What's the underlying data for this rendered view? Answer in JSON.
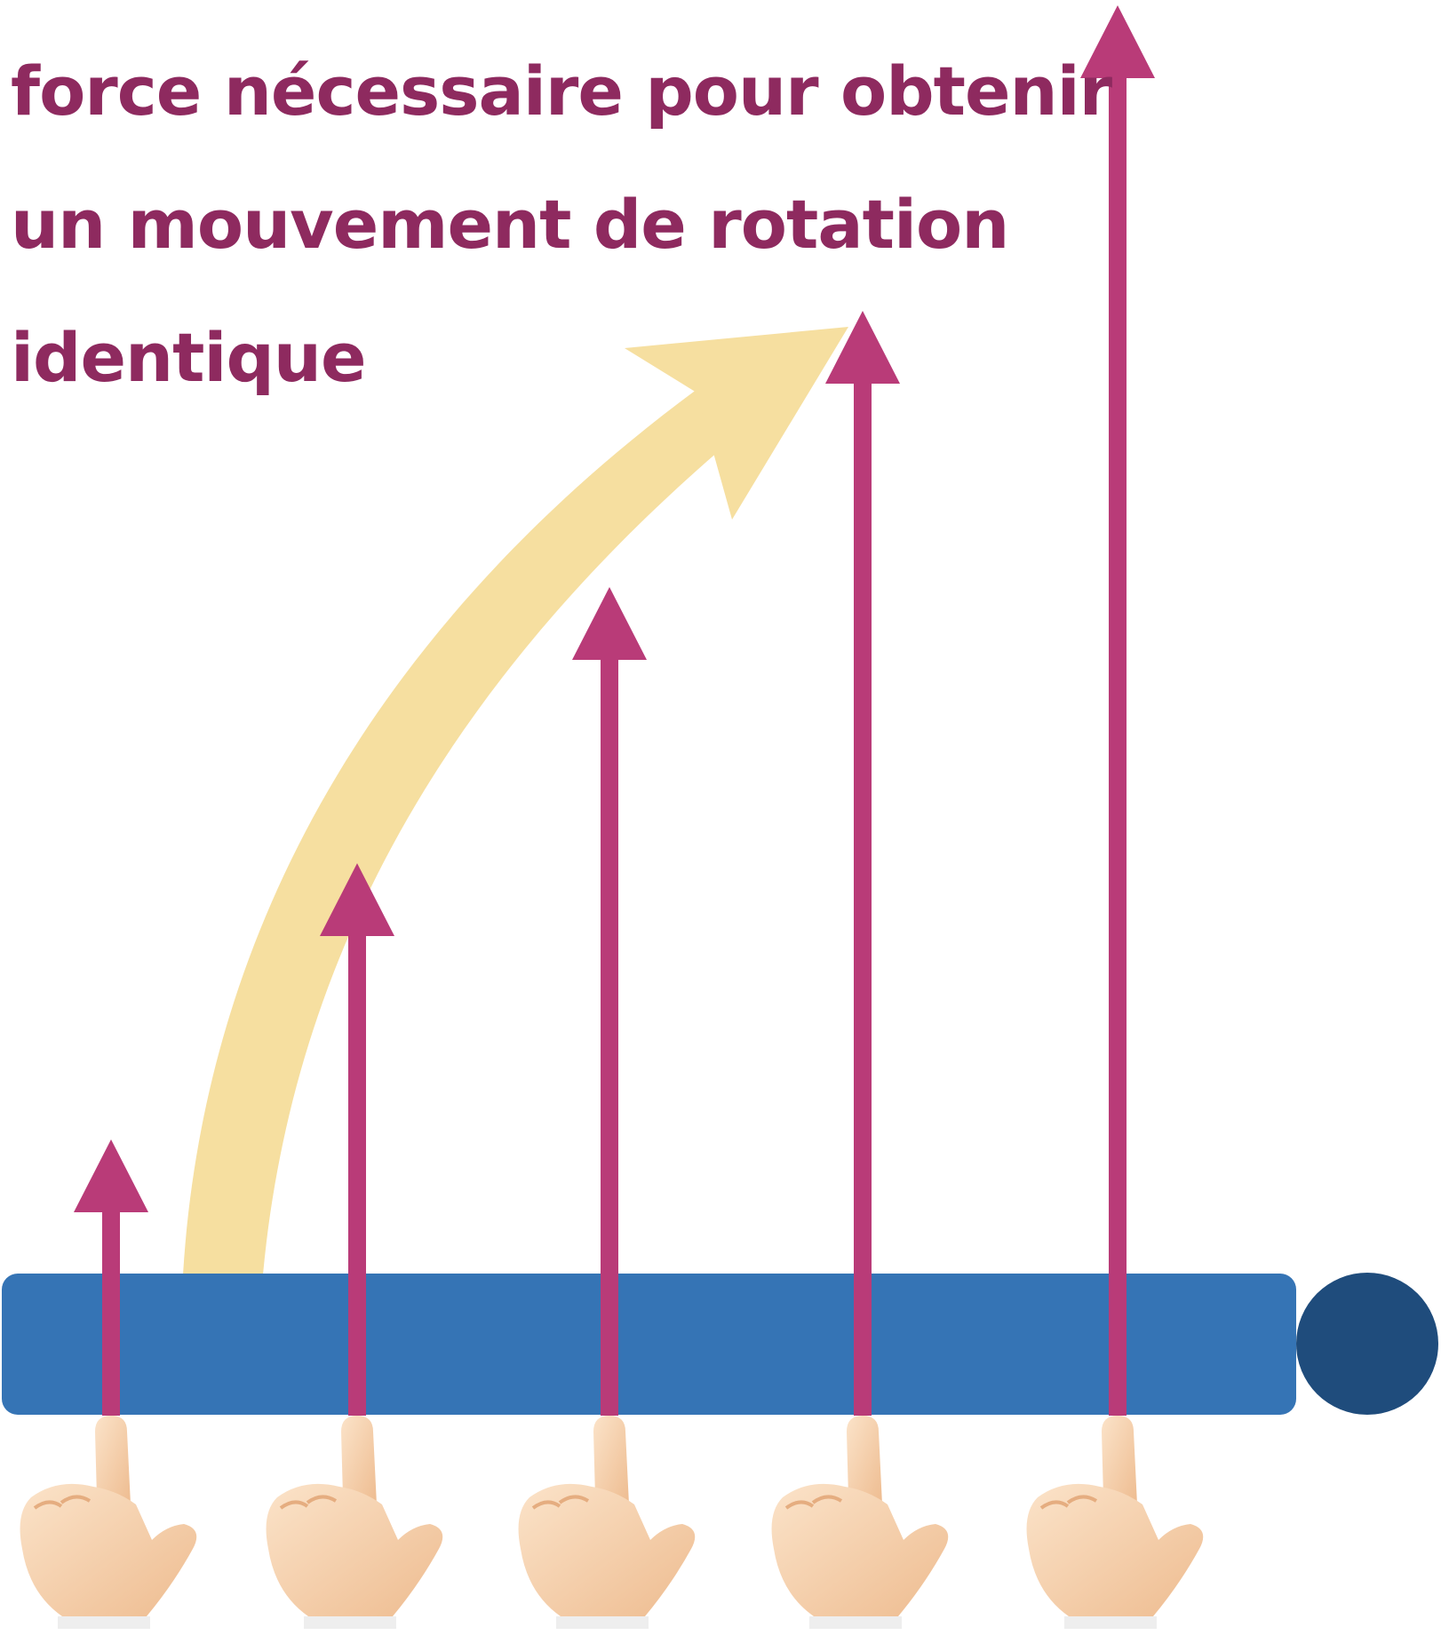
{
  "caption": {
    "lines": [
      "force nécessaire pour obtenir",
      "un mouvement de rotation",
      "identique"
    ]
  },
  "colors": {
    "caption_text": "#8e2a5f",
    "force_arrow": "#b93b78",
    "rotation_arrow": "#f6dfa0",
    "lever_bar": "#3574b5",
    "pivot": "#1f4c7c",
    "finger_skin": "#f4c9a0",
    "finger_skin_light": "#fbe3c9",
    "cuff": "#eeeeee"
  },
  "icons": {
    "pointing_hand": "pointing-hand-icon",
    "rotation_arrow": "curved-arrow-icon",
    "pivot": "pivot-circle-icon"
  },
  "forces": [
    {
      "id": "force-1",
      "relative_magnitude": 1
    },
    {
      "id": "force-2",
      "relative_magnitude": 2
    },
    {
      "id": "force-3",
      "relative_magnitude": 3
    },
    {
      "id": "force-4",
      "relative_magnitude": 4
    },
    {
      "id": "force-5",
      "relative_magnitude": 8
    }
  ]
}
